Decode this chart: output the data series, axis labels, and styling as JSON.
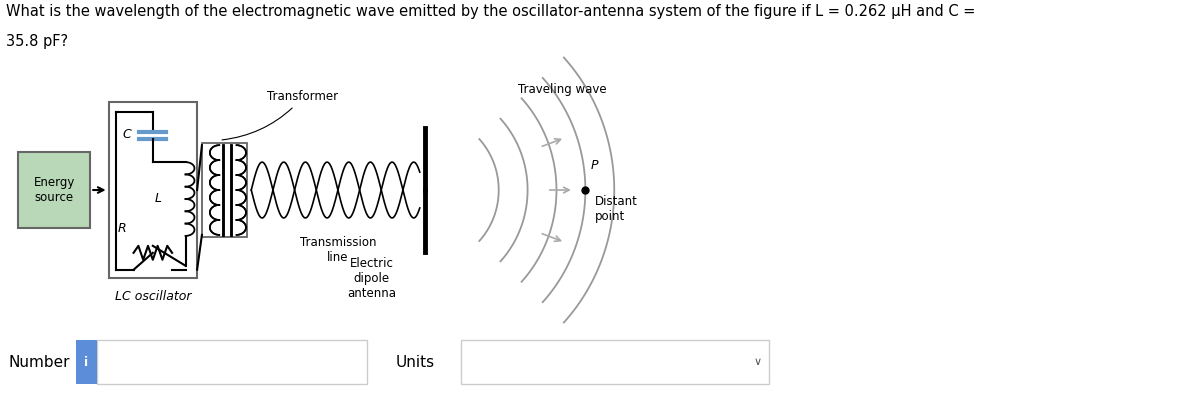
{
  "question_text_line1": "What is the wavelength of the electromagnetic wave emitted by the oscillator-antenna system of the figure if L = 0.262 μH and C =",
  "question_text_line2": "35.8 pF?",
  "background_color": "#ffffff",
  "fig_width": 12.0,
  "fig_height": 3.95,
  "energy_source_box_color": "#b8d8b8",
  "energy_source_text": "Energy\nsource",
  "number_label": "Number",
  "units_label": "Units",
  "lc_oscillator_label": "LC oscillator",
  "transformer_label": "Transformer",
  "transmission_line_label": "Transmission\nline",
  "electric_dipole_label": "Electric\ndipole\nantenna",
  "traveling_wave_label": "Traveling wave",
  "distant_point_label": "Distant\npoint",
  "r_label": "R",
  "c_label": "C",
  "l_label": "L",
  "p_label": "P",
  "info_button_color": "#5b8dd9",
  "wave_color": "#999999",
  "arrow_color": "#aaaaaa"
}
